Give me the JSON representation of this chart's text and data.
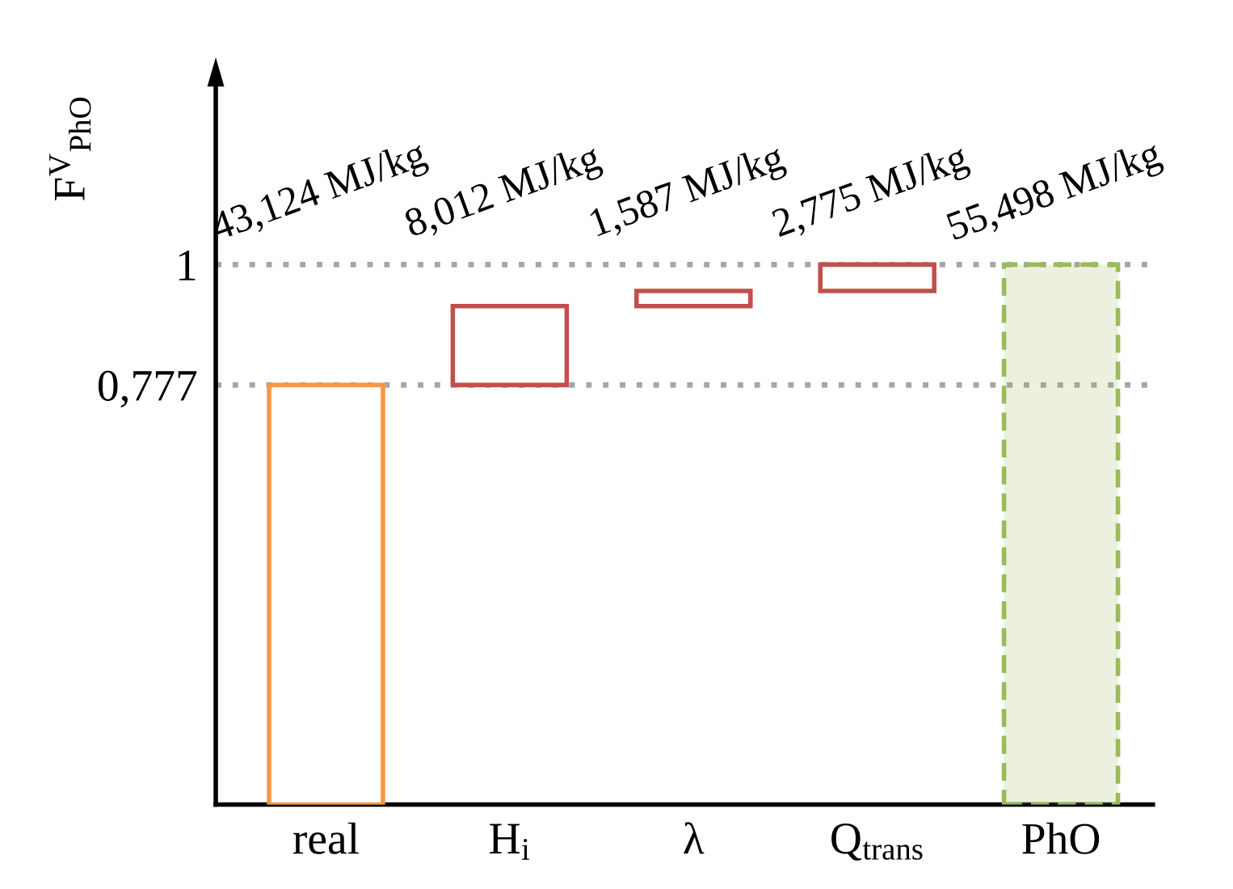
{
  "chart_data": {
    "type": "bar",
    "ylabel": "F$^{V}$$_{PhO}$",
    "categories": [
      "real",
      "H$_{i}$",
      "λ",
      "Q$_{trans}$",
      "PhO"
    ],
    "series": [
      {
        "color": "#f79646",
        "values": [
          0.777,
          null,
          null,
          null,
          null
        ],
        "base": [
          0,
          null,
          null,
          null,
          null
        ],
        "line_style": "solid"
      },
      {
        "color": "#c0504d",
        "values": [
          null,
          0.146,
          0.028,
          0.049,
          null
        ],
        "base": [
          null,
          0.777,
          0.923,
          0.951,
          null
        ],
        "line_style": "solid"
      },
      {
        "color": "#9bbb59",
        "values": [
          null,
          null,
          null,
          null,
          1
        ],
        "base": [
          null,
          null,
          null,
          null,
          0
        ],
        "line_style": "dashed"
      }
    ],
    "value_labels": [
      "43,124 MJ/kg",
      "8,012 MJ/kg",
      "1,587 MJ/kg",
      "2,775 MJ/kg",
      "55,498 MJ/kg"
    ],
    "ylim": [
      0,
      1.35
    ],
    "yticks": [
      {
        "value": 0.777,
        "label": "0,777"
      },
      1
    ],
    "ref_lines": [
      {
        "axis": "y",
        "value": 1,
        "color": "#a6a6a6",
        "line_style": "dotted"
      },
      {
        "axis": "y",
        "value": 0.777,
        "color": "#a6a6a6",
        "line_style": "dotted"
      }
    ],
    "grid": false,
    "legend": false
  }
}
